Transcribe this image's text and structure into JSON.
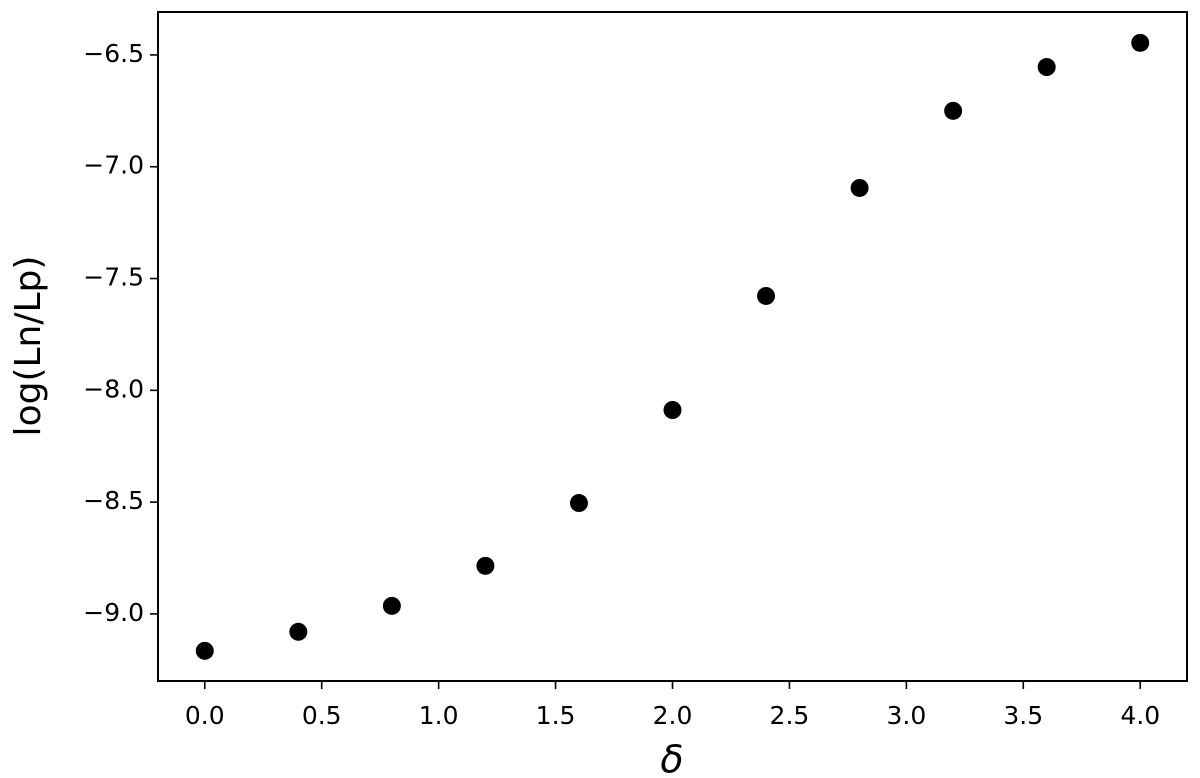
{
  "chart_data": {
    "type": "scatter",
    "xlabel": "δ",
    "ylabel": "log(Ln/Lp)",
    "x": [
      0.0,
      0.4,
      0.8,
      1.2,
      1.6,
      2.0,
      2.4,
      2.8,
      3.2,
      3.6,
      4.0
    ],
    "series": [
      {
        "color": "#000000",
        "values": [
          -9.165,
          -9.08,
          -8.964,
          -8.785,
          -8.504,
          -8.088,
          -7.578,
          -7.095,
          -6.75,
          -6.554,
          -6.446
        ]
      }
    ],
    "xlim": [
      -0.2,
      4.2
    ],
    "ylim": [
      -9.3,
      -6.308
    ],
    "xticks": [
      {
        "value": 0,
        "label": "0.0"
      },
      0.5,
      {
        "value": 1,
        "label": "1.0"
      },
      1.5,
      {
        "value": 2,
        "label": "2.0"
      },
      2.5,
      {
        "value": 3,
        "label": "3.0"
      },
      3.5,
      {
        "value": 4,
        "label": "4.0"
      }
    ],
    "yticks": [
      {
        "value": -9,
        "label": "−9.0"
      },
      {
        "value": -8.5,
        "label": "−8.5"
      },
      {
        "value": -8,
        "label": "−8.0"
      },
      {
        "value": -7.5,
        "label": "−7.5"
      },
      {
        "value": -7,
        "label": "−7.0"
      },
      {
        "value": -6.5,
        "label": "−6.5"
      }
    ],
    "grid": false
  }
}
